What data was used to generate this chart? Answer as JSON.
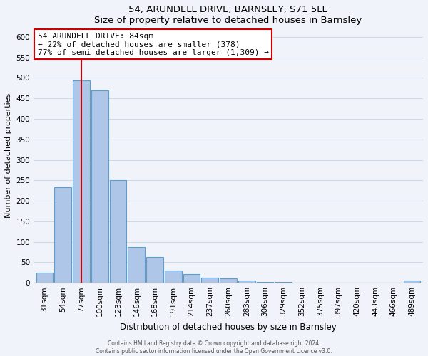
{
  "title": "54, ARUNDELL DRIVE, BARNSLEY, S71 5LE",
  "subtitle": "Size of property relative to detached houses in Barnsley",
  "xlabel": "Distribution of detached houses by size in Barnsley",
  "ylabel": "Number of detached properties",
  "bin_labels": [
    "31sqm",
    "54sqm",
    "77sqm",
    "100sqm",
    "123sqm",
    "146sqm",
    "168sqm",
    "191sqm",
    "214sqm",
    "237sqm",
    "260sqm",
    "283sqm",
    "306sqm",
    "329sqm",
    "352sqm",
    "375sqm",
    "397sqm",
    "420sqm",
    "443sqm",
    "466sqm",
    "489sqm"
  ],
  "bar_heights": [
    25,
    233,
    493,
    470,
    250,
    88,
    63,
    30,
    22,
    13,
    10,
    5,
    3,
    2,
    1,
    1,
    0,
    0,
    0,
    0,
    5
  ],
  "bar_color": "#aec6e8",
  "bar_edge_color": "#5a9fd4",
  "property_line_color": "#cc0000",
  "annotation_title": "54 ARUNDELL DRIVE: 84sqm",
  "annotation_line1": "← 22% of detached houses are smaller (378)",
  "annotation_line2": "77% of semi-detached houses are larger (1,309) →",
  "annotation_box_color": "#ffffff",
  "annotation_box_edge": "#cc0000",
  "ylim": [
    0,
    620
  ],
  "yticks": [
    0,
    50,
    100,
    150,
    200,
    250,
    300,
    350,
    400,
    450,
    500,
    550,
    600
  ],
  "footer_line1": "Contains HM Land Registry data © Crown copyright and database right 2024.",
  "footer_line2": "Contains public sector information licensed under the Open Government Licence v3.0.",
  "bg_color": "#f0f4fa",
  "plot_bg_color": "#f0f4fa",
  "grid_color": "#d0d8e8",
  "title_fontsize": 9.5,
  "subtitle_fontsize": 8.5,
  "xlabel_fontsize": 8.5,
  "ylabel_fontsize": 8,
  "tick_fontsize": 7.5,
  "annot_fontsize": 8
}
